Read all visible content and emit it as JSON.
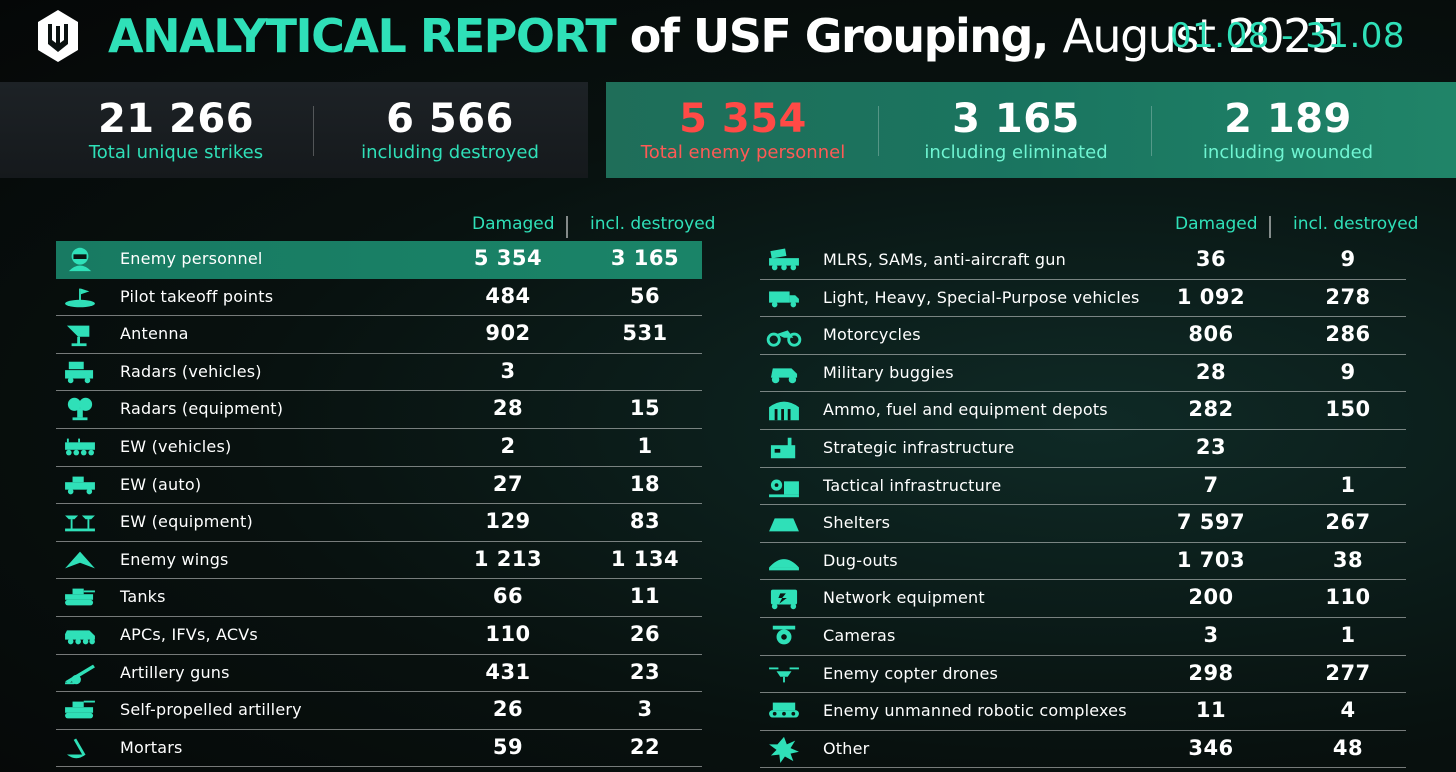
{
  "header": {
    "title_accent": "ANALYTICAL REPORT",
    "title_bold": "of USF Grouping,",
    "title_light": "August 2025",
    "date_range": "01.08 - 31.08"
  },
  "summary": {
    "total_strikes": {
      "value": "21 266",
      "label": "Total unique strikes"
    },
    "destroyed": {
      "value": "6 566",
      "label": "including destroyed"
    },
    "enemy_personnel": {
      "value": "5 354",
      "label": "Total enemy personnel"
    },
    "eliminated": {
      "value": "3 165",
      "label": "including eliminated"
    },
    "wounded": {
      "value": "2 189",
      "label": "including wounded"
    }
  },
  "colors": {
    "accent": "#2fe0b8",
    "highlight_row": "#187a62",
    "alert": "#ff4a46"
  },
  "left_table": {
    "col_damaged": "Damaged",
    "col_destroyed": "incl. destroyed",
    "rows": [
      {
        "icon": "soldier-icon",
        "name": "Enemy personnel",
        "damaged": "5 354",
        "destroyed": "3 165"
      },
      {
        "icon": "takeoff-point-icon",
        "name": "Pilot takeoff points",
        "damaged": "484",
        "destroyed": "56"
      },
      {
        "icon": "antenna-icon",
        "name": "Antenna",
        "damaged": "902",
        "destroyed": "531"
      },
      {
        "icon": "radar-vehicle-icon",
        "name": "Radars (vehicles)",
        "damaged": "3",
        "destroyed": ""
      },
      {
        "icon": "radar-equipment-icon",
        "name": "Radars (equipment)",
        "damaged": "28",
        "destroyed": "15"
      },
      {
        "icon": "ew-vehicle-icon",
        "name": "EW (vehicles)",
        "damaged": "2",
        "destroyed": "1"
      },
      {
        "icon": "ew-auto-icon",
        "name": "EW (auto)",
        "damaged": "27",
        "destroyed": "18"
      },
      {
        "icon": "ew-equipment-icon",
        "name": "EW (equipment)",
        "damaged": "129",
        "destroyed": "83"
      },
      {
        "icon": "wing-icon",
        "name": "Enemy wings",
        "damaged": "1 213",
        "destroyed": "1 134"
      },
      {
        "icon": "tank-icon",
        "name": "Tanks",
        "damaged": "66",
        "destroyed": "11"
      },
      {
        "icon": "apc-icon",
        "name": "APCs, IFVs, ACVs",
        "damaged": "110",
        "destroyed": "26"
      },
      {
        "icon": "artillery-icon",
        "name": "Artillery guns",
        "damaged": "431",
        "destroyed": "23"
      },
      {
        "icon": "sp-artillery-icon",
        "name": "Self-propelled artillery",
        "damaged": "26",
        "destroyed": "3"
      },
      {
        "icon": "mortar-icon",
        "name": "Mortars",
        "damaged": "59",
        "destroyed": "22"
      }
    ]
  },
  "right_table": {
    "col_damaged": "Damaged",
    "col_destroyed": "incl. destroyed",
    "rows": [
      {
        "icon": "mlrs-icon",
        "name": "MLRS, SAMs, anti-aircraft gun",
        "damaged": "36",
        "destroyed": "9"
      },
      {
        "icon": "truck-icon",
        "name": "Light, Heavy, Special-Purpose vehicles",
        "damaged": "1 092",
        "destroyed": "278"
      },
      {
        "icon": "motorcycle-icon",
        "name": "Motorcycles",
        "damaged": "806",
        "destroyed": "286"
      },
      {
        "icon": "buggy-icon",
        "name": "Military buggies",
        "damaged": "28",
        "destroyed": "9"
      },
      {
        "icon": "depot-icon",
        "name": "Ammo, fuel and equipment depots",
        "damaged": "282",
        "destroyed": "150"
      },
      {
        "icon": "factory-icon",
        "name": "Strategic infrastructure",
        "damaged": "23",
        "destroyed": ""
      },
      {
        "icon": "gear-building-icon",
        "name": "Tactical infrastructure",
        "damaged": "7",
        "destroyed": "1"
      },
      {
        "icon": "shelter-icon",
        "name": "Shelters",
        "damaged": "7 597",
        "destroyed": "267"
      },
      {
        "icon": "dugout-icon",
        "name": "Dug-outs",
        "damaged": "1 703",
        "destroyed": "38"
      },
      {
        "icon": "network-icon",
        "name": "Network equipment",
        "damaged": "200",
        "destroyed": "110"
      },
      {
        "icon": "camera-icon",
        "name": "Cameras",
        "damaged": "3",
        "destroyed": "1"
      },
      {
        "icon": "drone-icon",
        "name": "Enemy copter drones",
        "damaged": "298",
        "destroyed": "277"
      },
      {
        "icon": "robot-icon",
        "name": "Enemy unmanned robotic complexes",
        "damaged": "11",
        "destroyed": "4"
      },
      {
        "icon": "explosion-icon",
        "name": "Other",
        "damaged": "346",
        "destroyed": "48"
      }
    ]
  }
}
